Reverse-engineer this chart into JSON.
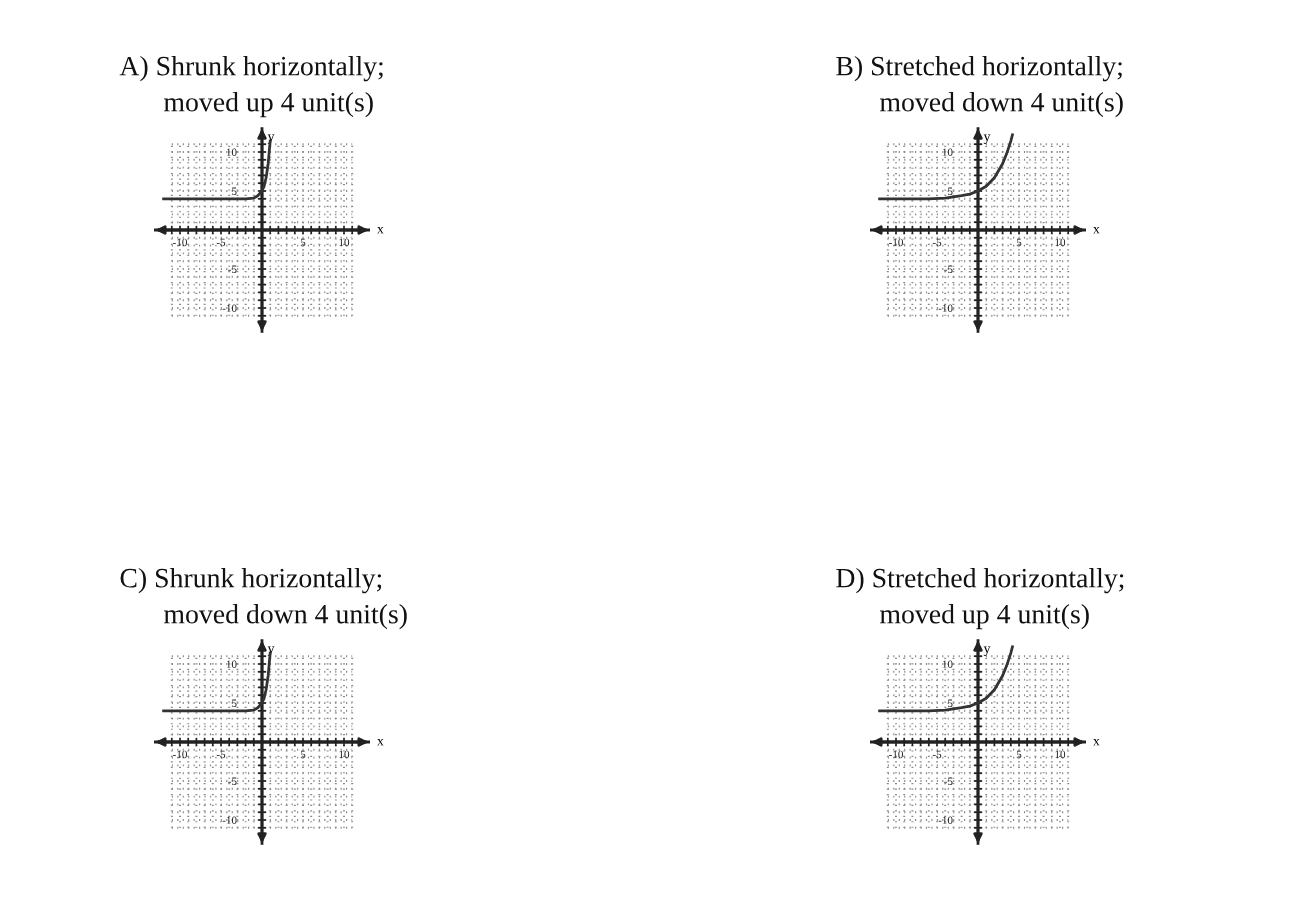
{
  "chart_data": [
    {
      "type": "line",
      "title": "A) Shrunk horizontally;\nmoved up 4 unit(s)",
      "xlabel": "x",
      "ylabel": "y",
      "xlim": [
        -13,
        13
      ],
      "ylim": [
        -13,
        13
      ],
      "xticks": [
        {
          "value": -11,
          "label": null
        },
        -10,
        {
          "value": -9,
          "label": null
        },
        {
          "value": -8,
          "label": null
        },
        {
          "value": -7,
          "label": null
        },
        {
          "value": -6,
          "label": null
        },
        -5,
        {
          "value": -4,
          "label": null
        },
        {
          "value": -3,
          "label": null
        },
        {
          "value": -2,
          "label": null
        },
        {
          "value": -1,
          "label": null
        },
        {
          "value": 1,
          "label": null
        },
        {
          "value": 2,
          "label": null
        },
        {
          "value": 3,
          "label": null
        },
        {
          "value": 4,
          "label": null
        },
        5,
        {
          "value": 6,
          "label": null
        },
        {
          "value": 7,
          "label": null
        },
        {
          "value": 8,
          "label": null
        },
        {
          "value": 9,
          "label": null
        },
        10,
        {
          "value": 11,
          "label": null
        }
      ],
      "yticks": [
        {
          "value": -11,
          "label": null
        },
        -10,
        {
          "value": -9,
          "label": null
        },
        {
          "value": -8,
          "label": null
        },
        {
          "value": -7,
          "label": null
        },
        {
          "value": -6,
          "label": null
        },
        -5,
        {
          "value": -4,
          "label": null
        },
        {
          "value": -3,
          "label": null
        },
        {
          "value": -2,
          "label": null
        },
        {
          "value": -1,
          "label": null
        },
        {
          "value": 1,
          "label": null
        },
        {
          "value": 2,
          "label": null
        },
        {
          "value": 3,
          "label": null
        },
        {
          "value": 4,
          "label": null
        },
        5,
        {
          "value": 6,
          "label": null
        },
        {
          "value": 7,
          "label": null
        },
        {
          "value": 8,
          "label": null
        },
        {
          "value": 9,
          "label": null
        },
        10,
        {
          "value": 11,
          "label": null
        }
      ],
      "grid": true,
      "series": [
        {
          "color": "#333333",
          "x": [
            -12,
            -4,
            -2,
            -1,
            -0.5,
            0,
            0.25,
            0.5,
            0.75,
            1
          ],
          "values": [
            4,
            4,
            4,
            4.1,
            4.4,
            5,
            5.6,
            6.7,
            8.5,
            11.4
          ]
        }
      ]
    },
    {
      "type": "line",
      "title": "B) Stretched horizontally;\nmoved down 4 unit(s)",
      "xlabel": "x",
      "ylabel": "y",
      "xlim": [
        -13,
        13
      ],
      "ylim": [
        -13,
        13
      ],
      "xticks": [
        {
          "value": -11,
          "label": null
        },
        -10,
        {
          "value": -9,
          "label": null
        },
        {
          "value": -8,
          "label": null
        },
        {
          "value": -7,
          "label": null
        },
        {
          "value": -6,
          "label": null
        },
        -5,
        {
          "value": -4,
          "label": null
        },
        {
          "value": -3,
          "label": null
        },
        {
          "value": -2,
          "label": null
        },
        {
          "value": -1,
          "label": null
        },
        {
          "value": 1,
          "label": null
        },
        {
          "value": 2,
          "label": null
        },
        {
          "value": 3,
          "label": null
        },
        {
          "value": 4,
          "label": null
        },
        5,
        {
          "value": 6,
          "label": null
        },
        {
          "value": 7,
          "label": null
        },
        {
          "value": 8,
          "label": null
        },
        {
          "value": 9,
          "label": null
        },
        10,
        {
          "value": 11,
          "label": null
        }
      ],
      "yticks": [
        {
          "value": -11,
          "label": null
        },
        -10,
        {
          "value": -9,
          "label": null
        },
        {
          "value": -8,
          "label": null
        },
        {
          "value": -7,
          "label": null
        },
        {
          "value": -6,
          "label": null
        },
        -5,
        {
          "value": -4,
          "label": null
        },
        {
          "value": -3,
          "label": null
        },
        {
          "value": -2,
          "label": null
        },
        {
          "value": -1,
          "label": null
        },
        {
          "value": 1,
          "label": null
        },
        {
          "value": 2,
          "label": null
        },
        {
          "value": 3,
          "label": null
        },
        {
          "value": 4,
          "label": null
        },
        5,
        {
          "value": 6,
          "label": null
        },
        {
          "value": 7,
          "label": null
        },
        {
          "value": 8,
          "label": null
        },
        {
          "value": 9,
          "label": null
        },
        10,
        {
          "value": 11,
          "label": null
        }
      ],
      "grid": true,
      "series": [
        {
          "color": "#333333",
          "x": [
            -12,
            -8,
            -6,
            -4,
            -2,
            -1,
            0,
            1,
            2,
            3,
            3.5,
            4,
            4.2
          ],
          "values": [
            4,
            4,
            4,
            4.1,
            4.4,
            4.6,
            5,
            5.6,
            6.7,
            8.5,
            9.8,
            11.4,
            12.2
          ]
        }
      ]
    },
    {
      "type": "line",
      "title": "C) Shrunk horizontally;\nmoved down 4 unit(s)",
      "xlabel": "x",
      "ylabel": "y",
      "xlim": [
        -13,
        13
      ],
      "ylim": [
        -13,
        13
      ],
      "xticks": [
        {
          "value": -11,
          "label": null
        },
        -10,
        {
          "value": -9,
          "label": null
        },
        {
          "value": -8,
          "label": null
        },
        {
          "value": -7,
          "label": null
        },
        {
          "value": -6,
          "label": null
        },
        -5,
        {
          "value": -4,
          "label": null
        },
        {
          "value": -3,
          "label": null
        },
        {
          "value": -2,
          "label": null
        },
        {
          "value": -1,
          "label": null
        },
        {
          "value": 1,
          "label": null
        },
        {
          "value": 2,
          "label": null
        },
        {
          "value": 3,
          "label": null
        },
        {
          "value": 4,
          "label": null
        },
        5,
        {
          "value": 6,
          "label": null
        },
        {
          "value": 7,
          "label": null
        },
        {
          "value": 8,
          "label": null
        },
        {
          "value": 9,
          "label": null
        },
        10,
        {
          "value": 11,
          "label": null
        }
      ],
      "yticks": [
        {
          "value": -11,
          "label": null
        },
        -10,
        {
          "value": -9,
          "label": null
        },
        {
          "value": -8,
          "label": null
        },
        {
          "value": -7,
          "label": null
        },
        {
          "value": -6,
          "label": null
        },
        -5,
        {
          "value": -4,
          "label": null
        },
        {
          "value": -3,
          "label": null
        },
        {
          "value": -2,
          "label": null
        },
        {
          "value": -1,
          "label": null
        },
        {
          "value": 1,
          "label": null
        },
        {
          "value": 2,
          "label": null
        },
        {
          "value": 3,
          "label": null
        },
        {
          "value": 4,
          "label": null
        },
        5,
        {
          "value": 6,
          "label": null
        },
        {
          "value": 7,
          "label": null
        },
        {
          "value": 8,
          "label": null
        },
        {
          "value": 9,
          "label": null
        },
        10,
        {
          "value": 11,
          "label": null
        }
      ],
      "grid": true,
      "series": [
        {
          "color": "#333333",
          "x": [
            -12,
            -4,
            -2,
            -1,
            -0.5,
            0,
            0.25,
            0.5,
            0.75,
            1
          ],
          "values": [
            4,
            4,
            4,
            4.1,
            4.4,
            5,
            5.6,
            6.7,
            8.5,
            11.4
          ]
        }
      ]
    },
    {
      "type": "line",
      "title": "D) Stretched horizontally;\nmoved up 4 unit(s)",
      "xlabel": "x",
      "ylabel": "y",
      "xlim": [
        -13,
        13
      ],
      "ylim": [
        -13,
        13
      ],
      "xticks": [
        {
          "value": -11,
          "label": null
        },
        -10,
        {
          "value": -9,
          "label": null
        },
        {
          "value": -8,
          "label": null
        },
        {
          "value": -7,
          "label": null
        },
        {
          "value": -6,
          "label": null
        },
        -5,
        {
          "value": -4,
          "label": null
        },
        {
          "value": -3,
          "label": null
        },
        {
          "value": -2,
          "label": null
        },
        {
          "value": -1,
          "label": null
        },
        {
          "value": 1,
          "label": null
        },
        {
          "value": 2,
          "label": null
        },
        {
          "value": 3,
          "label": null
        },
        {
          "value": 4,
          "label": null
        },
        5,
        {
          "value": 6,
          "label": null
        },
        {
          "value": 7,
          "label": null
        },
        {
          "value": 8,
          "label": null
        },
        {
          "value": 9,
          "label": null
        },
        10,
        {
          "value": 11,
          "label": null
        }
      ],
      "yticks": [
        {
          "value": -11,
          "label": null
        },
        -10,
        {
          "value": -9,
          "label": null
        },
        {
          "value": -8,
          "label": null
        },
        {
          "value": -7,
          "label": null
        },
        {
          "value": -6,
          "label": null
        },
        -5,
        {
          "value": -4,
          "label": null
        },
        {
          "value": -3,
          "label": null
        },
        {
          "value": -2,
          "label": null
        },
        {
          "value": -1,
          "label": null
        },
        {
          "value": 1,
          "label": null
        },
        {
          "value": 2,
          "label": null
        },
        {
          "value": 3,
          "label": null
        },
        {
          "value": 4,
          "label": null
        },
        5,
        {
          "value": 6,
          "label": null
        },
        {
          "value": 7,
          "label": null
        },
        {
          "value": 8,
          "label": null
        },
        {
          "value": 9,
          "label": null
        },
        10,
        {
          "value": 11,
          "label": null
        }
      ],
      "grid": true,
      "series": [
        {
          "color": "#333333",
          "x": [
            -12,
            -8,
            -6,
            -4,
            -2,
            -1,
            0,
            1,
            2,
            3,
            3.5,
            4,
            4.2
          ],
          "values": [
            4,
            4,
            4,
            4.1,
            4.4,
            4.6,
            5,
            5.6,
            6.7,
            8.5,
            9.8,
            11.4,
            12.2
          ]
        }
      ]
    }
  ]
}
